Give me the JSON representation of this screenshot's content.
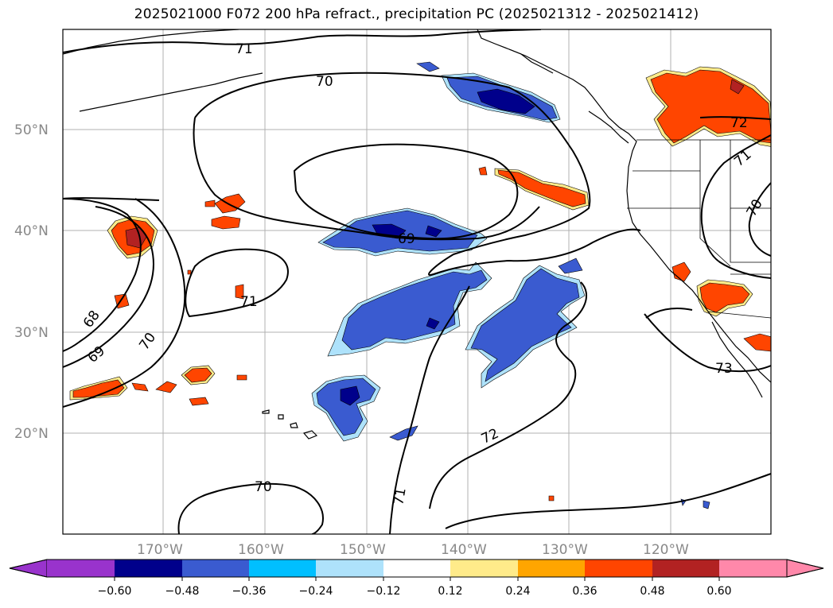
{
  "title": "2025021000 F072 200 hPa refract., precipitation PC (2025021312 - 2025021412)",
  "map": {
    "lon_ticks": [
      {
        "label": "170°W",
        "lon": -170
      },
      {
        "label": "160°W",
        "lon": -160
      },
      {
        "label": "150°W",
        "lon": -150
      },
      {
        "label": "140°W",
        "lon": -140
      },
      {
        "label": "130°W",
        "lon": -130
      },
      {
        "label": "120°W",
        "lon": -120
      }
    ],
    "lat_ticks": [
      {
        "label": "50°N",
        "lat": 50
      },
      {
        "label": "40°N",
        "lat": 40
      },
      {
        "label": "30°N",
        "lat": 30
      },
      {
        "label": "20°N",
        "lat": 20
      }
    ],
    "contour_labels": [
      "71",
      "70",
      "69",
      "71",
      "68",
      "69",
      "70",
      "72",
      "71",
      "70",
      "73",
      "72",
      "71",
      "70"
    ],
    "colors": {
      "neg_060": "#9933cc",
      "neg_048": "#00008b",
      "neg_036": "#3a5bd0",
      "neg_024": "#00bfff",
      "neg_012": "#aee2fb",
      "pos_012": "#ffeb8a",
      "pos_024": "#ffa500",
      "pos_036": "#ff4500",
      "pos_048": "#b22222",
      "pos_060": "#ff88aa",
      "contour": "#000000",
      "grid": "#b0b0b0"
    }
  },
  "colorbar": {
    "labels": [
      "−0.60",
      "−0.48",
      "−0.36",
      "−0.24",
      "−0.12",
      "0.12",
      "0.24",
      "0.36",
      "0.48",
      "0.60"
    ],
    "colors": [
      "#9933cc",
      "#00008b",
      "#3a5bd0",
      "#00bfff",
      "#aee2fb",
      "#ffffff",
      "#ffeb8a",
      "#ffa500",
      "#ff4500",
      "#b22222",
      "#ff88aa"
    ]
  }
}
